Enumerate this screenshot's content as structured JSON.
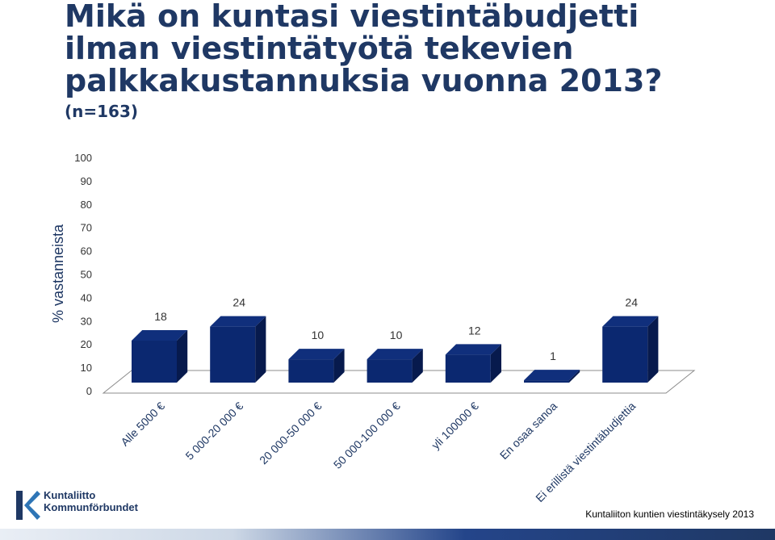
{
  "chart_data": {
    "type": "bar",
    "title": "Mikä on kuntasi viestintäbudjetti\nilman viestintätyötä tekevien\npalkkakustannuksia vuonna 2013?",
    "subtitle": "(n=163)",
    "xlabel": "",
    "ylabel": "% vastanneista",
    "ylim": [
      0,
      100
    ],
    "yticks": [
      "0",
      "10",
      "20",
      "30",
      "40",
      "50",
      "60",
      "70",
      "80",
      "90",
      "100"
    ],
    "categories": [
      "Alle 5000 €",
      "5 000-20 000 €",
      "20 000-50 000 €",
      "50 000-100 000 €",
      "yli 100000 €",
      "En osaa sanoa",
      "Ei erillistä viestintäbudjettia"
    ],
    "values": [
      18,
      24,
      10,
      10,
      12,
      1,
      24
    ],
    "data_labels": [
      "18",
      "24",
      "10",
      "10",
      "12",
      "1",
      "24"
    ],
    "grid": false,
    "bar_color": "#0b2870"
  },
  "logo": {
    "line1": "Kuntaliitto",
    "line2": "Kommunförbundet"
  },
  "source": "Kuntaliiton kuntien viestintäkysely 2013",
  "colors": {
    "title": "#1f3864",
    "bar_front": "#0b2870",
    "bar_side": "#071a4d",
    "bar_top": "#102f7c"
  }
}
